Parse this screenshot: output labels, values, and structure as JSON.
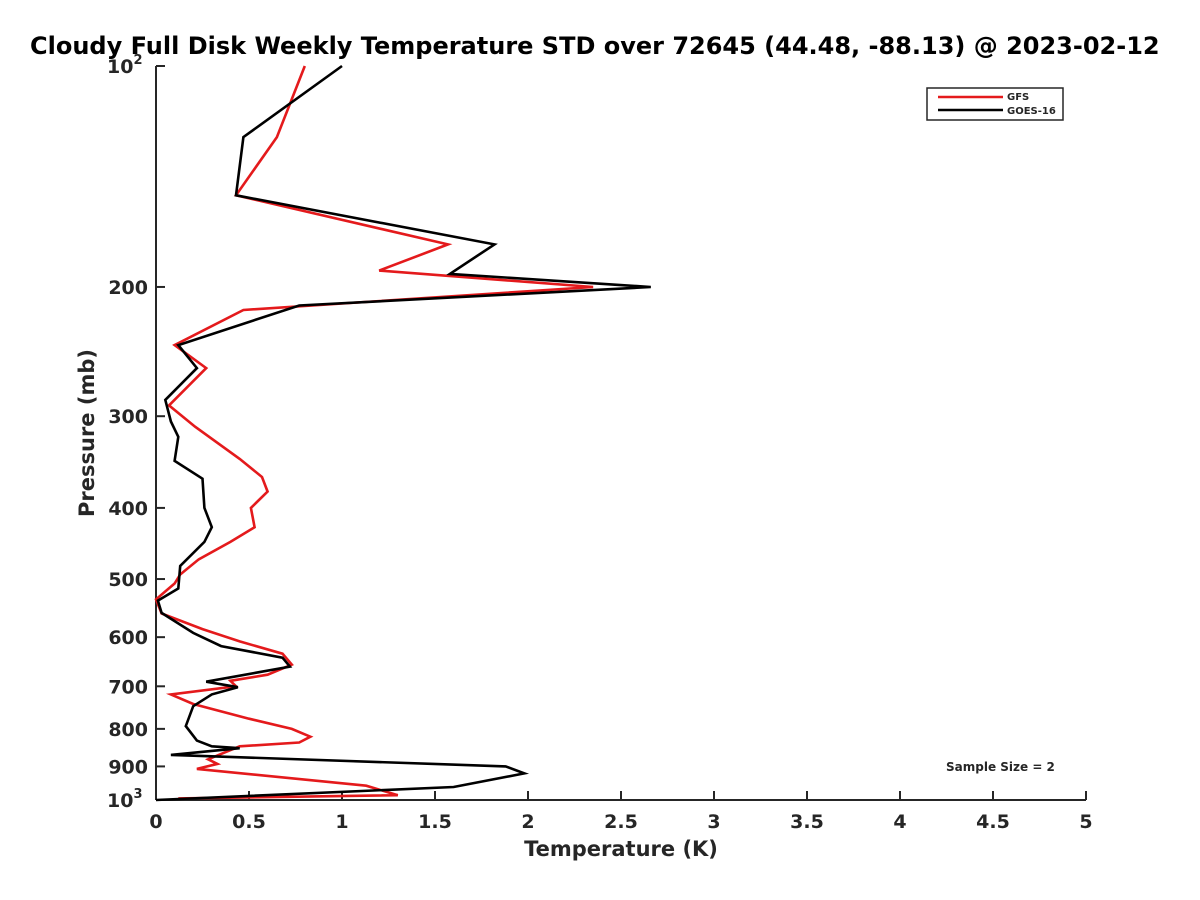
{
  "chart_data": {
    "type": "line",
    "title": "Cloudy Full Disk Weekly Temperature STD over 72645 (44.48, -88.13) @ 2023-02-12",
    "xlabel": "Temperature (K)",
    "ylabel": "Pressure (mb)",
    "xlim": [
      0,
      5
    ],
    "ylim": [
      100,
      1000
    ],
    "y_scale": "log",
    "y_reversed": true,
    "grid": false,
    "legend_position": "top-right",
    "x_ticks": [
      "0",
      "0.5",
      "1",
      "1.5",
      "2",
      "2.5",
      "3",
      "3.5",
      "4",
      "4.5",
      "5"
    ],
    "x_tick_values": [
      0,
      0.5,
      1,
      1.5,
      2,
      2.5,
      3,
      3.5,
      4,
      4.5,
      5
    ],
    "y_ticks": [
      {
        "value": 100,
        "base": "10",
        "exp": "2"
      },
      {
        "value": 200,
        "base": "200",
        "exp": ""
      },
      {
        "value": 300,
        "base": "300",
        "exp": ""
      },
      {
        "value": 400,
        "base": "400",
        "exp": ""
      },
      {
        "value": 500,
        "base": "500",
        "exp": ""
      },
      {
        "value": 600,
        "base": "600",
        "exp": ""
      },
      {
        "value": 700,
        "base": "700",
        "exp": ""
      },
      {
        "value": 800,
        "base": "800",
        "exp": ""
      },
      {
        "value": 900,
        "base": "900",
        "exp": ""
      },
      {
        "value": 1000,
        "base": "10",
        "exp": "3"
      }
    ],
    "annotation": "Sample Size = 2",
    "series": [
      {
        "name": "GFS",
        "color": "#e41a1c",
        "points": [
          [
            0.8,
            100
          ],
          [
            0.65,
            125
          ],
          [
            0.43,
            150
          ],
          [
            1.57,
            175
          ],
          [
            1.2,
            190
          ],
          [
            2.35,
            200
          ],
          [
            0.47,
            215
          ],
          [
            0.1,
            240
          ],
          [
            0.27,
            258
          ],
          [
            0.07,
            290
          ],
          [
            0.21,
            310
          ],
          [
            0.45,
            343
          ],
          [
            0.57,
            363
          ],
          [
            0.6,
            380
          ],
          [
            0.51,
            400
          ],
          [
            0.53,
            425
          ],
          [
            0.4,
            445
          ],
          [
            0.23,
            470
          ],
          [
            0.13,
            493
          ],
          [
            0.1,
            507
          ],
          [
            0.0,
            533
          ],
          [
            0.03,
            557
          ],
          [
            0.25,
            585
          ],
          [
            0.45,
            608
          ],
          [
            0.68,
            632
          ],
          [
            0.73,
            654
          ],
          [
            0.6,
            675
          ],
          [
            0.4,
            688
          ],
          [
            0.43,
            700
          ],
          [
            0.08,
            718
          ],
          [
            0.2,
            740
          ],
          [
            0.5,
            775
          ],
          [
            0.73,
            800
          ],
          [
            0.83,
            820
          ],
          [
            0.77,
            835
          ],
          [
            0.45,
            845
          ],
          [
            0.28,
            880
          ],
          [
            0.33,
            893
          ],
          [
            0.22,
            907
          ],
          [
            1.13,
            956
          ],
          [
            1.3,
            985
          ],
          [
            0.12,
            995
          ]
        ]
      },
      {
        "name": "GOES-16",
        "color": "#000000",
        "points": [
          [
            1.0,
            100
          ],
          [
            0.47,
            125
          ],
          [
            0.43,
            150
          ],
          [
            1.82,
            175
          ],
          [
            1.58,
            192
          ],
          [
            2.66,
            200
          ],
          [
            0.77,
            212
          ],
          [
            0.12,
            240
          ],
          [
            0.22,
            258
          ],
          [
            0.05,
            285
          ],
          [
            0.08,
            305
          ],
          [
            0.12,
            320
          ],
          [
            0.1,
            345
          ],
          [
            0.25,
            365
          ],
          [
            0.26,
            400
          ],
          [
            0.3,
            425
          ],
          [
            0.26,
            445
          ],
          [
            0.13,
            480
          ],
          [
            0.12,
            515
          ],
          [
            0.01,
            535
          ],
          [
            0.03,
            556
          ],
          [
            0.2,
            592
          ],
          [
            0.35,
            617
          ],
          [
            0.68,
            640
          ],
          [
            0.72,
            658
          ],
          [
            0.55,
            670
          ],
          [
            0.27,
            690
          ],
          [
            0.44,
            702
          ],
          [
            0.3,
            718
          ],
          [
            0.2,
            745
          ],
          [
            0.16,
            793
          ],
          [
            0.22,
            830
          ],
          [
            0.3,
            845
          ],
          [
            0.45,
            850
          ],
          [
            0.08,
            868
          ],
          [
            0.3,
            872
          ],
          [
            1.88,
            900
          ],
          [
            1.98,
            920
          ],
          [
            1.6,
            960
          ],
          [
            0.0,
            1000
          ]
        ]
      }
    ]
  }
}
